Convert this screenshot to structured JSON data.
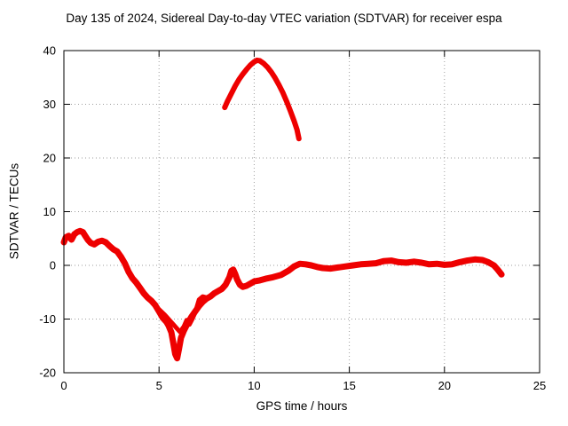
{
  "chart_data": {
    "type": "scatter",
    "title": "Day 135 of 2024, Sidereal Day-to-day VTEC variation (SDTVAR) for receiver espa",
    "xlabel": "GPS time / hours",
    "ylabel": "SDTVAR / TECUs",
    "xlim": [
      0,
      25
    ],
    "ylim": [
      -20,
      40
    ],
    "xticks": [
      0,
      5,
      10,
      15,
      20,
      25
    ],
    "yticks": [
      -20,
      -10,
      0,
      10,
      20,
      30,
      40
    ],
    "grid": true,
    "legend": "none",
    "color": "#ee0000",
    "series": [
      {
        "name": "main-trace",
        "width": 7,
        "points": [
          [
            0.0,
            4.3
          ],
          [
            0.1,
            5.2
          ],
          [
            0.25,
            5.5
          ],
          [
            0.4,
            4.8
          ],
          [
            0.55,
            5.8
          ],
          [
            0.7,
            6.2
          ],
          [
            0.85,
            6.4
          ],
          [
            1.0,
            6.2
          ],
          [
            1.1,
            5.6
          ],
          [
            1.25,
            4.8
          ],
          [
            1.4,
            4.2
          ],
          [
            1.6,
            3.9
          ],
          [
            1.8,
            4.4
          ],
          [
            2.0,
            4.6
          ],
          [
            2.2,
            4.3
          ],
          [
            2.4,
            3.6
          ],
          [
            2.6,
            3.0
          ],
          [
            2.8,
            2.6
          ],
          [
            3.0,
            1.6
          ],
          [
            3.2,
            0.4
          ],
          [
            3.4,
            -1.2
          ],
          [
            3.6,
            -2.4
          ],
          [
            3.8,
            -3.2
          ],
          [
            4.0,
            -4.2
          ],
          [
            4.2,
            -5.2
          ],
          [
            4.4,
            -6.0
          ],
          [
            4.6,
            -6.6
          ],
          [
            4.8,
            -7.4
          ],
          [
            5.0,
            -8.6
          ],
          [
            5.2,
            -9.8
          ],
          [
            5.4,
            -10.6
          ],
          [
            5.5,
            -11.2
          ],
          [
            5.65,
            -12.5
          ],
          [
            5.75,
            -14.5
          ],
          [
            5.85,
            -16.5
          ],
          [
            5.95,
            -17.3
          ],
          [
            6.05,
            -15.5
          ],
          [
            6.15,
            -13.5
          ],
          [
            6.3,
            -12.2
          ],
          [
            6.5,
            -10.8
          ],
          [
            6.7,
            -9.6
          ],
          [
            6.9,
            -8.6
          ],
          [
            7.1,
            -7.6
          ],
          [
            7.3,
            -6.8
          ],
          [
            7.5,
            -6.2
          ],
          [
            7.7,
            -5.8
          ],
          [
            7.9,
            -5.2
          ],
          [
            8.1,
            -4.8
          ],
          [
            8.3,
            -4.4
          ],
          [
            8.5,
            -3.6
          ],
          [
            8.7,
            -2.2
          ],
          [
            8.8,
            -1.0
          ],
          [
            8.9,
            -0.8
          ],
          [
            9.0,
            -1.6
          ],
          [
            9.1,
            -2.6
          ],
          [
            9.25,
            -3.6
          ],
          [
            9.4,
            -4.0
          ],
          [
            9.6,
            -3.8
          ],
          [
            9.8,
            -3.4
          ],
          [
            10.0,
            -3.0
          ],
          [
            10.3,
            -2.8
          ],
          [
            10.6,
            -2.5
          ],
          [
            11.0,
            -2.2
          ],
          [
            11.4,
            -1.8
          ],
          [
            11.8,
            -1.0
          ],
          [
            12.1,
            -0.2
          ],
          [
            12.4,
            0.3
          ],
          [
            12.7,
            0.2
          ],
          [
            13.0,
            0.0
          ],
          [
            13.3,
            -0.3
          ],
          [
            13.6,
            -0.5
          ],
          [
            14.0,
            -0.6
          ],
          [
            14.4,
            -0.4
          ],
          [
            14.8,
            -0.2
          ],
          [
            15.2,
            0.0
          ],
          [
            15.6,
            0.2
          ],
          [
            16.0,
            0.3
          ],
          [
            16.4,
            0.4
          ],
          [
            16.8,
            0.8
          ],
          [
            17.2,
            0.9
          ],
          [
            17.6,
            0.6
          ],
          [
            18.0,
            0.5
          ],
          [
            18.4,
            0.7
          ],
          [
            18.8,
            0.5
          ],
          [
            19.2,
            0.2
          ],
          [
            19.6,
            0.3
          ],
          [
            20.0,
            0.1
          ],
          [
            20.4,
            0.2
          ],
          [
            20.8,
            0.6
          ],
          [
            21.2,
            0.9
          ],
          [
            21.6,
            1.1
          ],
          [
            22.0,
            1.0
          ],
          [
            22.3,
            0.6
          ],
          [
            22.6,
            0.0
          ],
          [
            22.8,
            -0.8
          ],
          [
            23.0,
            -1.7
          ]
        ]
      },
      {
        "name": "branch-trace",
        "width": 5,
        "points": [
          [
            5.0,
            -8.2
          ],
          [
            5.3,
            -9.2
          ],
          [
            5.6,
            -10.4
          ],
          [
            5.9,
            -11.6
          ],
          [
            6.1,
            -12.4
          ],
          [
            6.3,
            -11.4
          ],
          [
            6.45,
            -10.2
          ],
          [
            6.6,
            -11.0
          ],
          [
            6.75,
            -10.0
          ],
          [
            6.9,
            -8.8
          ],
          [
            7.1,
            -6.4
          ],
          [
            7.3,
            -5.8
          ],
          [
            7.5,
            -6.0
          ]
        ]
      },
      {
        "name": "high-arc",
        "width": 6,
        "points": [
          [
            8.45,
            29.4
          ],
          [
            8.6,
            30.6
          ],
          [
            8.8,
            32.0
          ],
          [
            9.0,
            33.4
          ],
          [
            9.2,
            34.6
          ],
          [
            9.4,
            35.6
          ],
          [
            9.6,
            36.5
          ],
          [
            9.8,
            37.3
          ],
          [
            10.0,
            37.9
          ],
          [
            10.15,
            38.2
          ],
          [
            10.3,
            38.1
          ],
          [
            10.5,
            37.6
          ],
          [
            10.7,
            36.9
          ],
          [
            10.9,
            36.0
          ],
          [
            11.1,
            34.9
          ],
          [
            11.3,
            33.6
          ],
          [
            11.5,
            32.2
          ],
          [
            11.7,
            30.6
          ],
          [
            11.9,
            28.8
          ],
          [
            12.1,
            26.9
          ],
          [
            12.25,
            25.3
          ],
          [
            12.35,
            23.6
          ]
        ]
      }
    ]
  }
}
